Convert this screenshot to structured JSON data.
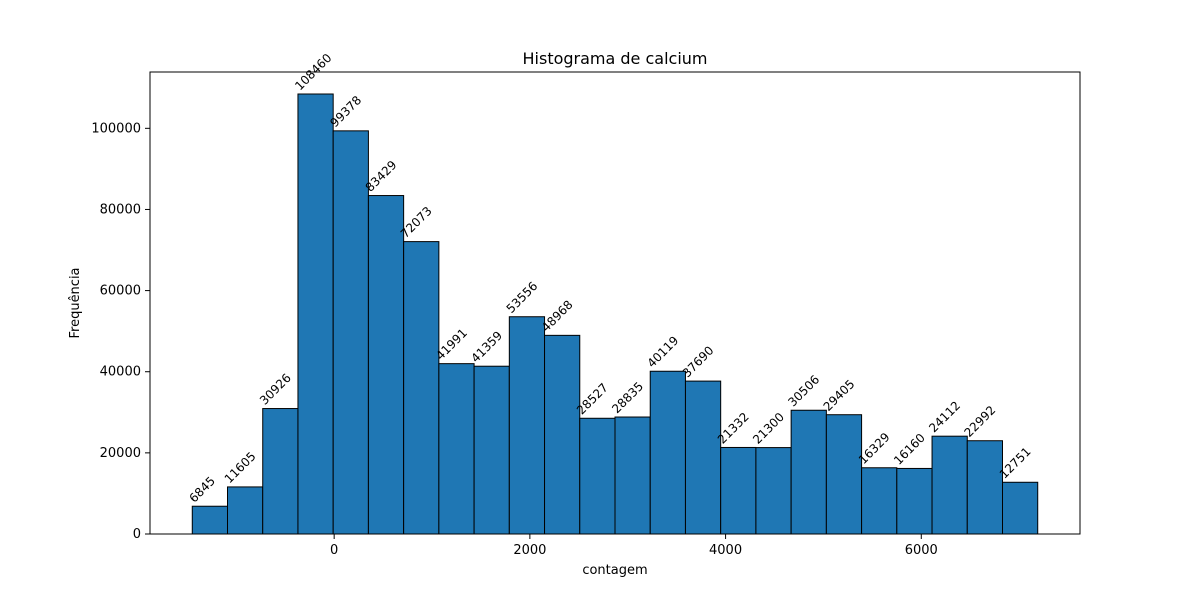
{
  "chart_data": {
    "type": "bar",
    "subtype": "histogram",
    "title": "Histograma de calcium",
    "xlabel": "contagem",
    "ylabel": "Frequência",
    "bar_color": "#1f77b4",
    "edge_color": "#000000",
    "bin_edges": [
      -1450,
      -1090,
      -730,
      -370,
      -10,
      350,
      710,
      1070,
      1430,
      1790,
      2150,
      2510,
      2870,
      3230,
      3590,
      3950,
      4310,
      4670,
      5030,
      5390,
      5750,
      6110,
      6470,
      6830,
      7190
    ],
    "values": [
      6845,
      11605,
      30926,
      108460,
      99378,
      83429,
      72073,
      41991,
      41359,
      53556,
      48968,
      28527,
      28835,
      40119,
      37690,
      21332,
      21300,
      30506,
      29405,
      16329,
      16160,
      24112,
      22992,
      12751
    ],
    "value_labels": [
      "6845",
      "11605",
      "30926",
      "108460",
      "99378",
      "83429",
      "72073",
      "41991",
      "41359",
      "53556",
      "48968",
      "28527",
      "28835",
      "40119",
      "37690",
      "21332",
      "21300",
      "30506",
      "29405",
      "16329",
      "16160",
      "24112",
      "22992",
      "12751"
    ],
    "xlim": [
      -1882,
      7622
    ],
    "ylim": [
      0,
      113883
    ],
    "x_ticks": [
      0,
      2000,
      4000,
      6000
    ],
    "x_tick_labels": [
      "0",
      "2000",
      "4000",
      "6000"
    ],
    "y_ticks": [
      0,
      20000,
      40000,
      60000,
      80000,
      100000
    ],
    "y_tick_labels": [
      "0",
      "20000",
      "40000",
      "60000",
      "80000",
      "100000"
    ],
    "grid": false,
    "legend": "none"
  }
}
